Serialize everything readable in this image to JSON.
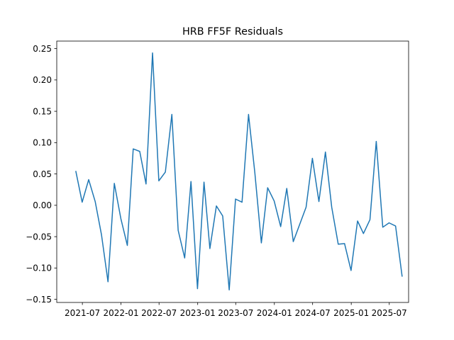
{
  "chart_data": {
    "type": "line",
    "title": "HRB FF5F Residuals",
    "xlabel": "",
    "ylabel": "",
    "grid": false,
    "line_color": "#1f77b4",
    "xlim": [
      "2021-03-01",
      "2025-10-01"
    ],
    "ylim": [
      -0.155,
      0.262
    ],
    "x_ticks": [
      "2021-07",
      "2022-01",
      "2022-07",
      "2023-01",
      "2023-07",
      "2024-01",
      "2024-07",
      "2025-01",
      "2025-07"
    ],
    "y_ticks": [
      -0.15,
      -0.1,
      -0.05,
      0.0,
      0.05,
      0.1,
      0.15,
      0.2,
      0.25
    ],
    "y_tick_labels": [
      "−0.15",
      "−0.10",
      "−0.05",
      "0.00",
      "0.05",
      "0.10",
      "0.15",
      "0.20",
      "0.25"
    ],
    "series": [
      {
        "x": [
          "2021-05-31",
          "2021-06-30",
          "2021-07-31",
          "2021-08-31",
          "2021-09-30",
          "2021-10-31",
          "2021-11-30",
          "2021-12-31",
          "2022-01-31",
          "2022-02-28",
          "2022-03-31",
          "2022-04-30",
          "2022-05-31",
          "2022-06-30",
          "2022-07-31",
          "2022-08-31",
          "2022-09-30",
          "2022-10-31",
          "2022-11-30",
          "2022-12-31",
          "2023-01-31",
          "2023-02-28",
          "2023-03-31",
          "2023-04-30",
          "2023-05-31",
          "2023-06-30",
          "2023-07-31",
          "2023-08-31",
          "2023-09-30",
          "2023-10-31",
          "2023-11-30",
          "2023-12-31",
          "2024-01-31",
          "2024-02-29",
          "2024-03-31",
          "2024-05-31",
          "2024-06-30",
          "2024-07-31",
          "2024-08-31",
          "2024-09-30",
          "2024-10-31",
          "2024-11-30",
          "2024-12-31",
          "2025-01-31",
          "2025-02-28",
          "2025-03-31",
          "2025-04-30",
          "2025-05-31",
          "2025-06-30",
          "2025-07-31",
          "2025-08-31"
        ],
        "values": [
          0.054,
          0.005,
          0.041,
          0.006,
          -0.047,
          -0.122,
          0.035,
          -0.021,
          -0.064,
          0.09,
          0.086,
          0.034,
          0.243,
          0.039,
          0.053,
          0.145,
          -0.04,
          -0.084,
          0.038,
          -0.133,
          0.037,
          -0.069,
          -0.001,
          -0.017,
          -0.135,
          0.01,
          0.005,
          0.145,
          0.052,
          -0.06,
          0.028,
          0.007,
          -0.034,
          0.027,
          -0.058,
          -0.003,
          0.075,
          0.006,
          0.085,
          -0.003,
          -0.062,
          -0.061,
          -0.104,
          -0.025,
          -0.045,
          -0.023,
          0.102,
          -0.035,
          -0.028,
          -0.033,
          -0.113
        ]
      }
    ]
  }
}
